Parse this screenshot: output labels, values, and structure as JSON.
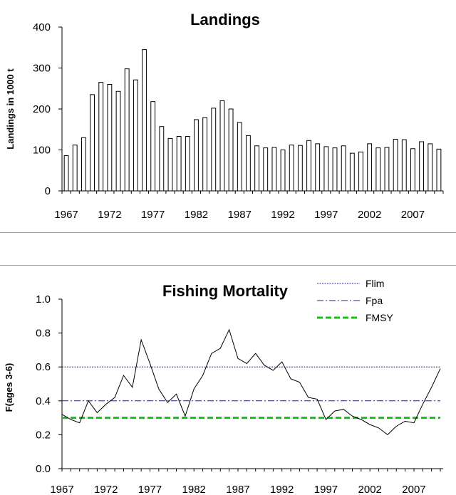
{
  "chart_data": [
    {
      "type": "bar",
      "title": "Landings",
      "ylabel": "Landings in 1000 t",
      "xlabel": "",
      "ylim": [
        0,
        400
      ],
      "yticks": [
        0,
        100,
        200,
        300,
        400
      ],
      "xtick_labels": [
        "1967",
        "1972",
        "1977",
        "1982",
        "1987",
        "1992",
        "1997",
        "2002",
        "2007"
      ],
      "categories": [
        1967,
        1968,
        1969,
        1970,
        1971,
        1972,
        1973,
        1974,
        1975,
        1976,
        1977,
        1978,
        1979,
        1980,
        1981,
        1982,
        1983,
        1984,
        1985,
        1986,
        1987,
        1988,
        1989,
        1990,
        1991,
        1992,
        1993,
        1994,
        1995,
        1996,
        1997,
        1998,
        1999,
        2000,
        2001,
        2002,
        2003,
        2004,
        2005,
        2006,
        2007,
        2008,
        2009,
        2010
      ],
      "values": [
        86,
        112,
        130,
        235,
        265,
        260,
        243,
        298,
        271,
        345,
        218,
        157,
        128,
        133,
        133,
        174,
        179,
        202,
        220,
        200,
        167,
        135,
        110,
        105,
        106,
        100,
        112,
        111,
        123,
        115,
        108,
        105,
        110,
        92,
        95,
        115,
        105,
        106,
        126,
        125,
        103,
        120,
        115,
        102
      ],
      "grid": false,
      "bar_color": "#ffffff",
      "bar_edge_color": "#000000"
    },
    {
      "type": "line",
      "title": "Fishing Mortality",
      "ylabel": "F(ages 3-6)",
      "xlabel": "",
      "ylim": [
        0,
        1.0
      ],
      "yticks": [
        "0.0",
        "0.2",
        "0.4",
        "0.6",
        "0.8",
        "1.0"
      ],
      "xtick_labels": [
        "1967",
        "1972",
        "1977",
        "1982",
        "1987",
        "1992",
        "1997",
        "2002",
        "2007"
      ],
      "x": [
        1967,
        1968,
        1969,
        1970,
        1971,
        1972,
        1973,
        1974,
        1975,
        1976,
        1977,
        1978,
        1979,
        1980,
        1981,
        1982,
        1983,
        1984,
        1985,
        1986,
        1987,
        1988,
        1989,
        1990,
        1991,
        1992,
        1993,
        1994,
        1995,
        1996,
        1997,
        1998,
        1999,
        2000,
        2001,
        2002,
        2003,
        2004,
        2005,
        2006,
        2007,
        2008,
        2009,
        2010
      ],
      "series": [
        {
          "values": [
            0.32,
            0.29,
            0.27,
            0.4,
            0.33,
            0.38,
            0.42,
            0.55,
            0.48,
            0.76,
            0.62,
            0.47,
            0.39,
            0.44,
            0.31,
            0.47,
            0.55,
            0.68,
            0.71,
            0.82,
            0.65,
            0.62,
            0.68,
            0.61,
            0.58,
            0.63,
            0.53,
            0.51,
            0.42,
            0.41,
            0.29,
            0.34,
            0.35,
            0.31,
            0.29,
            0.26,
            0.24,
            0.2,
            0.25,
            0.28,
            0.27,
            0.38,
            0.48,
            0.59
          ],
          "color": "#000000"
        }
      ],
      "reference_lines": [
        {
          "name": "Flim",
          "value": 0.6,
          "color": "#1f1fb0",
          "style": "dotted"
        },
        {
          "name": "Fpa",
          "value": 0.4,
          "color": "#1a237e",
          "style": "dash-dot"
        },
        {
          "name": "FMSY",
          "value": 0.3,
          "color": "#16c016",
          "style": "dashed"
        }
      ],
      "legend_placement": "top-right",
      "grid": false
    }
  ]
}
